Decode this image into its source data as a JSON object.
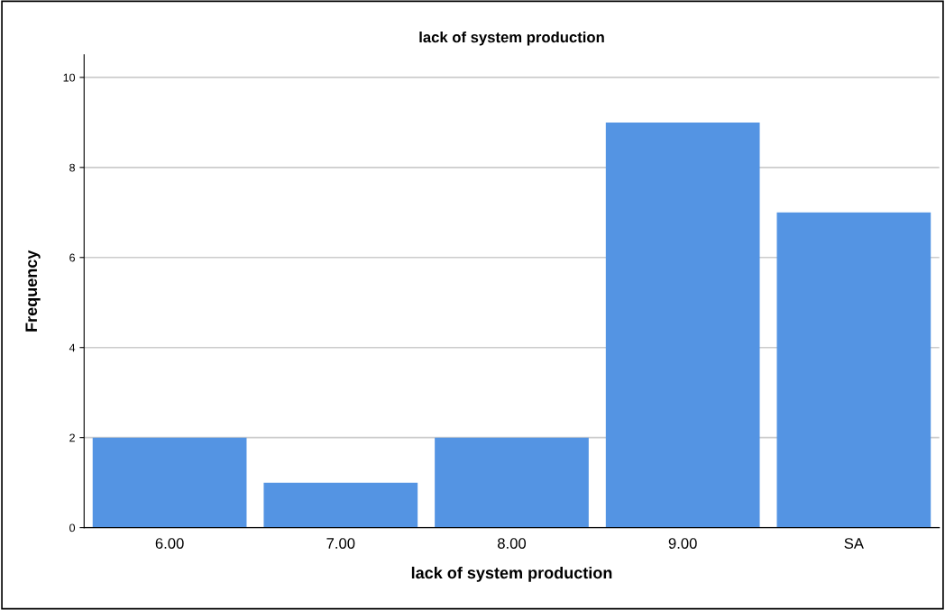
{
  "chart_data": {
    "type": "bar",
    "title": "lack of system production",
    "xlabel": "lack of system production",
    "ylabel": "Frequency",
    "categories": [
      "6.00",
      "7.00",
      "8.00",
      "9.00",
      "SA"
    ],
    "values": [
      2,
      1,
      2,
      9,
      7
    ],
    "color": "#5494e3",
    "ylim": [
      0,
      10.5
    ],
    "yticks": [
      0,
      2,
      4,
      6,
      8,
      10
    ],
    "grid": "y"
  }
}
